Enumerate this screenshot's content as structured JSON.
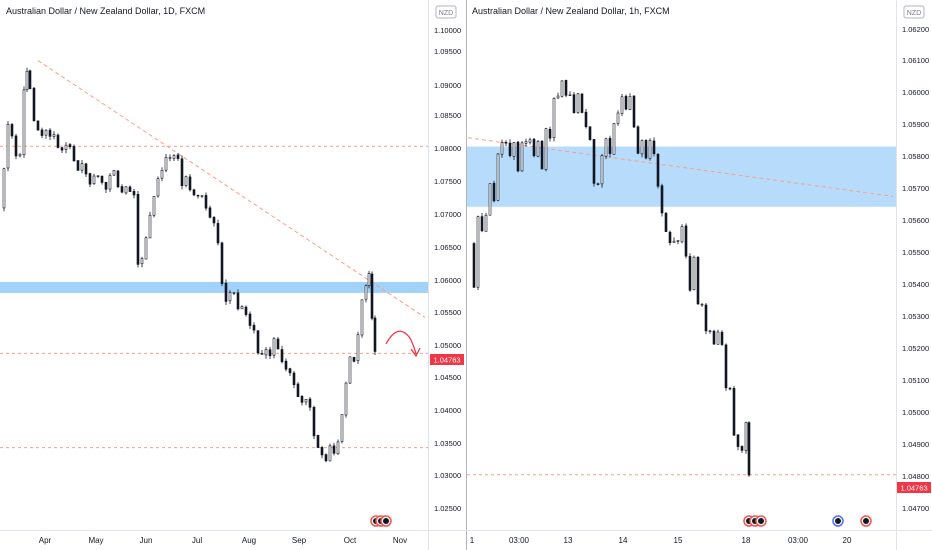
{
  "panels": [
    {
      "title": "Australian Dollar / New Zealand Dollar, 1D, FXCM",
      "currency": "NZD",
      "y_ticks": [
        "1.10000",
        "1.09500",
        "1.09000",
        "1.08500",
        "1.08000",
        "1.07500",
        "1.07000",
        "1.06500",
        "1.06000",
        "1.05500",
        "1.05000",
        "1.04500",
        "1.04000",
        "1.03500",
        "1.03000",
        "1.02500"
      ],
      "x_ticks": [
        "Apr",
        "May",
        "Jun",
        "Jul",
        "Aug",
        "Sep",
        "Oct",
        "Nov"
      ],
      "last_price": "1.04763"
    },
    {
      "title": "Australian Dollar / New Zealand Dollar, 1h, FXCM",
      "currency": "NZD",
      "y_ticks": [
        "1.06200",
        "1.06100",
        "1.06000",
        "1.05900",
        "1.05800",
        "1.05700",
        "1.05600",
        "1.05500",
        "1.05400",
        "1.05300",
        "1.05200",
        "1.05100",
        "1.05000",
        "1.04900",
        "1.04800",
        "1.04700"
      ],
      "x_ticks": [
        "1",
        "03:00",
        "13",
        "14",
        "15",
        "18",
        "03:00",
        "20"
      ],
      "last_price": "1.04763"
    }
  ],
  "colors": {
    "bullish": "#26a69a",
    "bearish": "#ef5350",
    "candle": "#131722",
    "zone": "#90caf9",
    "trendline": "#f7a08a",
    "price_tag": "#f23645",
    "axis_text": "#131722"
  },
  "chart_data": [
    {
      "type": "candlestick",
      "title": "Australian Dollar / New Zealand Dollar, 1D, FXCM",
      "y_unit": "NZD",
      "ylim": [
        1.0225,
        1.1005
      ],
      "x_categories": [
        "Apr",
        "May",
        "Jun",
        "Jul",
        "Aug",
        "Sep",
        "Oct",
        "Nov"
      ],
      "last_price": 1.04763,
      "close_path": [
        [
          0,
          1.0715
        ],
        [
          4,
          1.078
        ],
        [
          8,
          1.085
        ],
        [
          12,
          1.083
        ],
        [
          16,
          1.08
        ],
        [
          20,
          1.08
        ],
        [
          24,
          1.091
        ],
        [
          27,
          1.0935
        ],
        [
          30,
          1.091
        ],
        [
          34,
          1.086
        ],
        [
          38,
          1.0845
        ],
        [
          42,
          1.0835
        ],
        [
          46,
          1.0845
        ],
        [
          50,
          1.0835
        ],
        [
          54,
          1.083
        ],
        [
          58,
          1.081
        ],
        [
          62,
          1.081
        ],
        [
          66,
          1.082
        ],
        [
          70,
          1.081
        ],
        [
          74,
          1.079
        ],
        [
          78,
          1.0775
        ],
        [
          82,
          1.079
        ],
        [
          86,
          1.077
        ],
        [
          90,
          1.075
        ],
        [
          94,
          1.077
        ],
        [
          98,
          1.0765
        ],
        [
          102,
          1.0755
        ],
        [
          106,
          1.0745
        ],
        [
          110,
          1.0765
        ],
        [
          114,
          1.0775
        ],
        [
          118,
          1.0745
        ],
        [
          122,
          1.074
        ],
        [
          126,
          1.075
        ],
        [
          130,
          1.0745
        ],
        [
          134,
          1.0735
        ],
        [
          138,
          1.062
        ],
        [
          142,
          1.063
        ],
        [
          146,
          1.0665
        ],
        [
          150,
          1.0705
        ],
        [
          154,
          1.0735
        ],
        [
          158,
          1.0765
        ],
        [
          162,
          1.0775
        ],
        [
          166,
          1.0795
        ],
        [
          170,
          1.08
        ],
        [
          174,
          1.08
        ],
        [
          178,
          1.0795
        ],
        [
          182,
          1.0755
        ],
        [
          186,
          1.0765
        ],
        [
          190,
          1.0745
        ],
        [
          194,
          1.0735
        ],
        [
          198,
          1.0735
        ],
        [
          202,
          1.073
        ],
        [
          206,
          1.0715
        ],
        [
          210,
          1.0695
        ],
        [
          214,
          1.0685
        ],
        [
          218,
          1.066
        ],
        [
          222,
          1.059
        ],
        [
          226,
          1.0565
        ],
        [
          230,
          1.0575
        ],
        [
          234,
          1.057
        ],
        [
          238,
          1.0545
        ],
        [
          242,
          1.0555
        ],
        [
          246,
          1.0535
        ],
        [
          250,
          1.0525
        ],
        [
          254,
          1.051
        ],
        [
          258,
          1.048
        ],
        [
          262,
          1.0475
        ],
        [
          266,
          1.0485
        ],
        [
          270,
          1.0475
        ],
        [
          274,
          1.05
        ],
        [
          278,
          1.048
        ],
        [
          282,
          1.046
        ],
        [
          286,
          1.0455
        ],
        [
          290,
          1.0445
        ],
        [
          294,
          1.0425
        ],
        [
          298,
          1.0405
        ],
        [
          302,
          1.0395
        ],
        [
          306,
          1.0405
        ],
        [
          310,
          1.0385
        ],
        [
          314,
          1.0345
        ],
        [
          318,
          1.0325
        ],
        [
          322,
          1.031
        ],
        [
          326,
          1.03
        ],
        [
          330,
          1.0325
        ],
        [
          334,
          1.0315
        ],
        [
          338,
          1.033
        ],
        [
          342,
          1.0375
        ],
        [
          346,
          1.0425
        ],
        [
          350,
          1.0475
        ],
        [
          354,
          1.0465
        ],
        [
          358,
          1.0505
        ],
        [
          362,
          1.0565
        ],
        [
          366,
          1.059
        ],
        [
          369,
          1.0605
        ],
        [
          372,
          1.0535
        ],
        [
          375,
          1.0476
        ]
      ],
      "annotations": [
        {
          "kind": "zone",
          "from": 1.0575,
          "to": 1.0593
        },
        {
          "kind": "trendline",
          "from": [
            38,
            1.0955
          ],
          "to": [
            425,
            1.0535
          ]
        },
        {
          "kind": "level",
          "value": 1.0815
        },
        {
          "kind": "level",
          "value": 1.0322
        },
        {
          "kind": "level",
          "value": 1.04763
        },
        {
          "kind": "projection_arrow"
        }
      ]
    },
    {
      "type": "candlestick",
      "title": "Australian Dollar / New Zealand Dollar, 1h, FXCM",
      "y_unit": "NZD",
      "ylim": [
        1.0465,
        1.0628
      ],
      "x_categories": [
        "1",
        "03:00",
        "13",
        "14",
        "15",
        "18",
        "03:00",
        "20"
      ],
      "last_price": 1.04763,
      "close_path": [
        [
          470,
          1.0555
        ],
        [
          474,
          1.054
        ],
        [
          478,
          1.0565
        ],
        [
          482,
          1.056
        ],
        [
          486,
          1.0565
        ],
        [
          490,
          1.0575
        ],
        [
          494,
          1.057
        ],
        [
          498,
          1.0585
        ],
        [
          502,
          1.059
        ],
        [
          506,
          1.059
        ],
        [
          510,
          1.0585
        ],
        [
          514,
          1.059
        ],
        [
          518,
          1.058
        ],
        [
          522,
          1.059
        ],
        [
          526,
          1.059
        ],
        [
          530,
          1.059
        ],
        [
          534,
          1.0585
        ],
        [
          538,
          1.059
        ],
        [
          542,
          1.058
        ],
        [
          546,
          1.0595
        ],
        [
          550,
          1.059
        ],
        [
          554,
          1.0605
        ],
        [
          558,
          1.0605
        ],
        [
          562,
          1.061
        ],
        [
          566,
          1.0605
        ],
        [
          570,
          1.0605
        ],
        [
          574,
          1.06
        ],
        [
          578,
          1.0605
        ],
        [
          582,
          1.06
        ],
        [
          586,
          1.0595
        ],
        [
          590,
          1.059
        ],
        [
          594,
          1.0575
        ],
        [
          598,
          1.0575
        ],
        [
          602,
          1.0585
        ],
        [
          606,
          1.059
        ],
        [
          610,
          1.0585
        ],
        [
          614,
          1.0595
        ],
        [
          618,
          1.06
        ],
        [
          622,
          1.0605
        ],
        [
          626,
          1.06
        ],
        [
          630,
          1.0605
        ],
        [
          634,
          1.0595
        ],
        [
          638,
          1.0585
        ],
        [
          642,
          1.059
        ],
        [
          646,
          1.0585
        ],
        [
          650,
          1.059
        ],
        [
          654,
          1.0585
        ],
        [
          658,
          1.0575
        ],
        [
          662,
          1.0565
        ],
        [
          666,
          1.056
        ],
        [
          670,
          1.0555
        ],
        [
          674,
          1.0555
        ],
        [
          678,
          1.0555
        ],
        [
          682,
          1.056
        ],
        [
          686,
          1.055
        ],
        [
          690,
          1.054
        ],
        [
          694,
          1.055
        ],
        [
          698,
          1.0535
        ],
        [
          702,
          1.0535
        ],
        [
          706,
          1.0525
        ],
        [
          710,
          1.0525
        ],
        [
          714,
          1.052
        ],
        [
          718,
          1.0525
        ],
        [
          722,
          1.052
        ],
        [
          726,
          1.0505
        ],
        [
          730,
          1.0505
        ],
        [
          734,
          1.049
        ],
        [
          738,
          1.0485
        ],
        [
          742,
          1.0485
        ],
        [
          746,
          1.0495
        ],
        [
          749,
          1.0476
        ]
      ],
      "annotations": [
        {
          "kind": "zone",
          "from": 1.05675,
          "to": 1.0588
        },
        {
          "kind": "trendline",
          "from": [
            468,
            1.0591
          ],
          "to": [
            893,
            1.0571
          ]
        },
        {
          "kind": "level",
          "value": 1.04763
        }
      ]
    }
  ]
}
